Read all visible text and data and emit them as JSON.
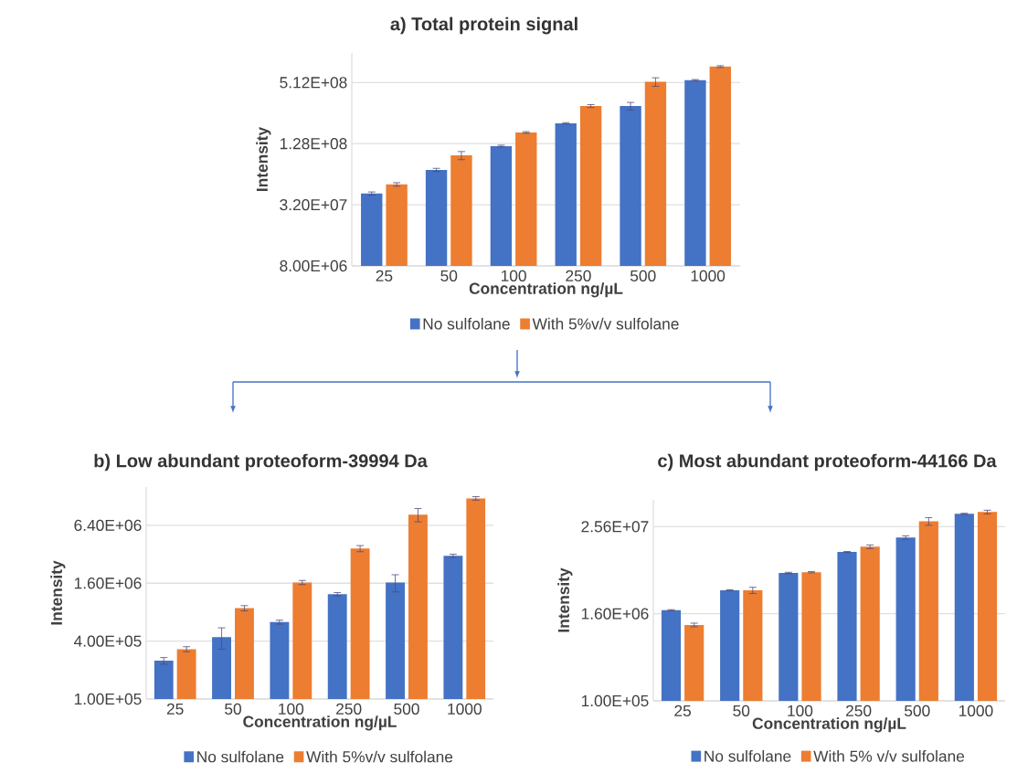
{
  "chart_data": [
    {
      "type": "bar",
      "title": "a)  Total protein signal",
      "xlabel": "Concentration ng/µL",
      "ylabel": "Intensity",
      "categories": [
        "25",
        "50",
        "100",
        "250",
        "500",
        "1000"
      ],
      "series": [
        {
          "name": "No sulfolane",
          "color": "#4472c4",
          "values": [
            41300000.0,
            70600000.0,
            121000000.0,
            203000000.0,
            300000000.0,
            540000000.0
          ],
          "errors": [
            1500000.0,
            2500000.0,
            2500000.0,
            3000000.0,
            26000000.0,
            8000000.0
          ]
        },
        {
          "name": "With 5%v/v sulfolane",
          "color": "#ed7d31",
          "values": [
            50800000.0,
            98000000.0,
            165000000.0,
            300000000.0,
            520000000.0,
            735000000.0
          ],
          "errors": [
            2000000.0,
            9000000.0,
            3000000.0,
            10000000.0,
            50000000.0,
            15000000.0
          ]
        }
      ],
      "log": true,
      "ylim": [
        8000000.0,
        1000000000.0
      ],
      "yticks": [
        {
          "value": 8000000.0,
          "label": "8.00E+06"
        },
        {
          "value": 32000000.0,
          "label": "3.20E+07"
        },
        {
          "value": 128000000.0,
          "label": "1.28E+08"
        },
        {
          "value": 512000000.0,
          "label": "5.12E+08"
        }
      ],
      "grid": "y",
      "legend": "bottom"
    },
    {
      "type": "bar",
      "title": "b)  Low abundant proteoform-39994 Da",
      "xlabel": "Concentration ng/µL",
      "ylabel": "Intensity",
      "categories": [
        "25",
        "50",
        "100",
        "250",
        "500",
        "1000"
      ],
      "series": [
        {
          "name": "No sulfolane",
          "color": "#4472c4",
          "values": [
            250000.0,
            440000.0,
            630000.0,
            1230000.0,
            1630000.0,
            3080000.0
          ],
          "errors": [
            20000.0,
            110000.0,
            30000.0,
            50000.0,
            330000.0,
            120000.0
          ]
        },
        {
          "name": "With 5%v/v sulfolane",
          "color": "#ed7d31",
          "values": [
            330000.0,
            880000.0,
            1630000.0,
            3670000.0,
            8260000.0,
            12200000.0
          ],
          "errors": [
            20000.0,
            55000.0,
            80000.0,
            270000.0,
            1300000.0,
            500000.0
          ]
        }
      ],
      "log": true,
      "ylim": [
        100000.0,
        16000000.0
      ],
      "yticks": [
        {
          "value": 100000.0,
          "label": "1.00E+05"
        },
        {
          "value": 400000.0,
          "label": "4.00E+05"
        },
        {
          "value": 1600000.0,
          "label": "1.60E+06"
        },
        {
          "value": 6400000.0,
          "label": "6.40E+06"
        }
      ],
      "grid": "y",
      "legend": "bottom"
    },
    {
      "type": "bar",
      "title": "c)  Most abundant proteoform-44166 Da",
      "xlabel": "Concentration ng/µL",
      "ylabel": "Intensity",
      "categories": [
        "25",
        "50",
        "100",
        "250",
        "500",
        "1000"
      ],
      "series": [
        {
          "name": "No sulfolane",
          "color": "#4472c4",
          "values": [
            1790000.0,
            3380000.0,
            5850000.0,
            11400000.0,
            18100000.0,
            38400000.0
          ],
          "errors": [
            30000.0,
            50000.0,
            130000.0,
            200000.0,
            1000000.0,
            700000.0
          ]
        },
        {
          "name": "With 5% v/v sulfolane",
          "color": "#ed7d31",
          "values": [
            1120000.0,
            3380000.0,
            6000000.0,
            13500000.0,
            30400000.0,
            40700000.0
          ],
          "errors": [
            65000.0,
            330000.0,
            130000.0,
            800000.0,
            3700000.0,
            2400000.0
          ]
        }
      ],
      "log": true,
      "ylim": [
        100000.0,
        60000000.0
      ],
      "yticks": [
        {
          "value": 100000.0,
          "label": "1.00E+05"
        },
        {
          "value": 1600000.0,
          "label": "1.60E+06"
        },
        {
          "value": 25600000.0,
          "label": "2.56E+07"
        }
      ],
      "grid": "y",
      "legend": "bottom"
    }
  ]
}
